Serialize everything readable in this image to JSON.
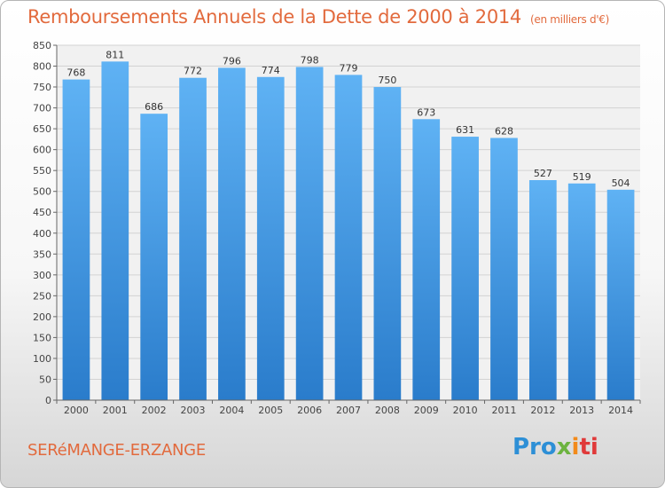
{
  "chart_data": {
    "type": "bar",
    "title": "Remboursements Annuels de la Dette de 2000 à 2014",
    "subtitle": "(en milliers d'€)",
    "categories": [
      "2000",
      "2001",
      "2002",
      "2003",
      "2004",
      "2005",
      "2006",
      "2007",
      "2008",
      "2009",
      "2010",
      "2011",
      "2012",
      "2013",
      "2014"
    ],
    "values": [
      768,
      811,
      686,
      772,
      796,
      774,
      798,
      779,
      750,
      673,
      631,
      628,
      527,
      519,
      504
    ],
    "ylim": [
      0,
      850
    ],
    "yticks": [
      0,
      50,
      100,
      150,
      200,
      250,
      300,
      350,
      400,
      450,
      500,
      550,
      600,
      650,
      700,
      750,
      800,
      850
    ],
    "xlabel": "",
    "ylabel": "",
    "grid": true,
    "bar_color": "#3a8fdc"
  },
  "footer": {
    "city": "SERéMANGE-ERZANGE",
    "logo": [
      "Pro",
      "x",
      "i",
      "ti"
    ]
  },
  "colors": {
    "title": "#e26a3d",
    "grid": "#d2d2d2"
  }
}
